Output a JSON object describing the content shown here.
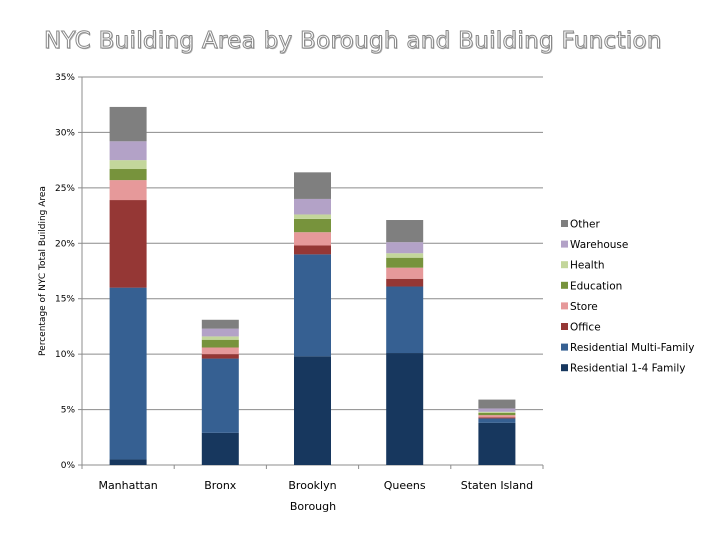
{
  "chart_data": {
    "type": "bar",
    "stacked": true,
    "title": "NYC Building Area by Borough and Building Function",
    "xlabel": "Borough",
    "ylabel": "Percentage of NYC Total Building Area",
    "categories": [
      "Manhattan",
      "Bronx",
      "Brooklyn",
      "Queens",
      "Staten Island"
    ],
    "ylim": [
      0,
      35
    ],
    "yticks": [
      "0%",
      "5%",
      "10%",
      "15%",
      "20%",
      "25%",
      "30%",
      "35%"
    ],
    "grid": true,
    "legend_position": "right",
    "series": [
      {
        "name": "Residential 1-4 Family",
        "color": "#17375e",
        "values": [
          0.5,
          2.9,
          9.8,
          10.1,
          3.8
        ]
      },
      {
        "name": "Residential Multi-Family",
        "color": "#366092",
        "values": [
          15.5,
          6.7,
          9.2,
          6.0,
          0.4
        ]
      },
      {
        "name": "Office",
        "color": "#953735",
        "values": [
          7.9,
          0.4,
          0.8,
          0.7,
          0.1
        ]
      },
      {
        "name": "Store",
        "color": "#e6999a",
        "values": [
          1.8,
          0.6,
          1.2,
          1.0,
          0.2
        ]
      },
      {
        "name": "Education",
        "color": "#77933c",
        "values": [
          1.0,
          0.7,
          1.2,
          0.9,
          0.2
        ]
      },
      {
        "name": "Health",
        "color": "#c3d69b",
        "values": [
          0.8,
          0.3,
          0.4,
          0.4,
          0.1
        ]
      },
      {
        "name": "Warehouse",
        "color": "#b3a2c7",
        "values": [
          1.7,
          0.7,
          1.4,
          1.0,
          0.3
        ]
      },
      {
        "name": "Other",
        "color": "#7f7f7f",
        "values": [
          3.1,
          0.8,
          2.4,
          2.0,
          0.8
        ]
      }
    ]
  }
}
